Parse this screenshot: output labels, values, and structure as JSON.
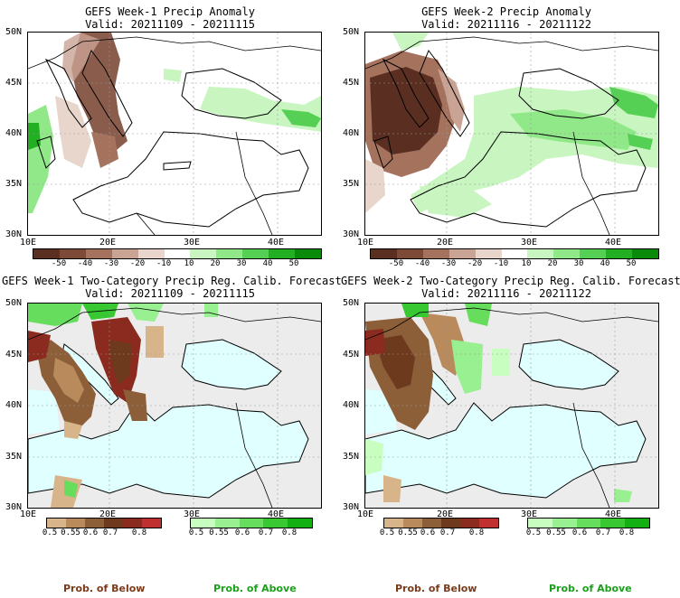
{
  "panels": [
    {
      "title": "GEFS Week-1 Precip Anomaly",
      "valid": "Valid: 20211109 - 20211115"
    },
    {
      "title": "GEFS Week-2 Precip Anomaly",
      "valid": "Valid: 20211116 - 20211122"
    },
    {
      "title": "GEFS Week-1 Two-Category Precip Reg. Calib. Forecast",
      "valid": "Valid: 20211109 - 20211115"
    },
    {
      "title": "GEFS Week-2 Two-Category Precip Reg. Calib. Forecast",
      "valid": "Valid: 20211116 - 20211122"
    }
  ],
  "lat_ticks": [
    "50N",
    "45N",
    "40N",
    "35N",
    "30N"
  ],
  "lon_ticks": [
    "10E",
    "20E",
    "30E",
    "40E"
  ],
  "anomaly_colorbar": {
    "labels": [
      "-50",
      "-40",
      "-30",
      "-20",
      "-10",
      "10",
      "20",
      "30",
      "40",
      "50"
    ],
    "colors": [
      "#5a2f22",
      "#7d4a38",
      "#a5725e",
      "#c9a394",
      "#e8d6cc",
      "#ffffff",
      "#c8f5c0",
      "#90e888",
      "#55d055",
      "#22b022",
      "#0a8a0a"
    ]
  },
  "below_colorbar": {
    "labels": [
      "0.5",
      "0.55",
      "0.6",
      "0.7",
      "0.8"
    ],
    "colors": [
      "#d8b48a",
      "#b88a5c",
      "#8c5f38",
      "#6e3a1e",
      "#8b2a1e",
      "#c03030"
    ]
  },
  "above_colorbar": {
    "labels": [
      "0.5",
      "0.55",
      "0.6",
      "0.7",
      "0.8"
    ],
    "colors": [
      "#c8ffc0",
      "#98f090",
      "#66dd5c",
      "#38c832",
      "#12b012"
    ]
  },
  "legend": {
    "below": "Prob. of Below",
    "above": "Prob. of Above"
  },
  "colors": {
    "sea": "#e0ffff",
    "land_nodata": "#ececec",
    "below_label": "#7a3a1a",
    "above_label": "#1aa01a"
  }
}
